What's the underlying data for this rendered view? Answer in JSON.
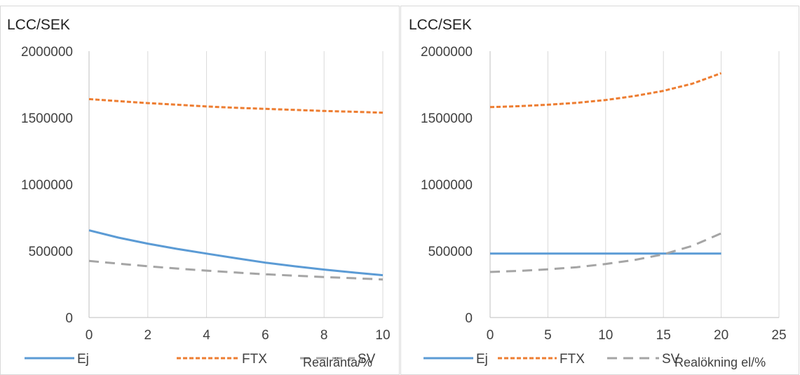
{
  "colors": {
    "Ej": "#5b9bd5",
    "FTX": "#ed7d31",
    "SV": "#a5a5a5"
  },
  "chart_data": [
    {
      "type": "line",
      "title": "",
      "ylabel": "LCC/SEK",
      "xlabel": "Realränta/%",
      "xlim": [
        0,
        10
      ],
      "ylim": [
        0,
        2000000
      ],
      "xticks": [
        "0",
        "2",
        "4",
        "6",
        "8",
        "10"
      ],
      "yticks": [
        "0",
        "500000",
        "1000000",
        "1500000",
        "2000000"
      ],
      "grid": "vertical",
      "legend": "bottom",
      "x": [
        0,
        1,
        2,
        3,
        4,
        5,
        6,
        7,
        8,
        9,
        10
      ],
      "series": [
        {
          "name": "Ej",
          "style": "solid",
          "values": [
            655000,
            600000,
            555000,
            515000,
            480000,
            445000,
            412000,
            385000,
            360000,
            338000,
            318000
          ]
        },
        {
          "name": "FTX",
          "style": "dotted",
          "values": [
            1640000,
            1625000,
            1610000,
            1598000,
            1585000,
            1575000,
            1567000,
            1559000,
            1551000,
            1545000,
            1538000
          ]
        },
        {
          "name": "SV",
          "style": "dashed",
          "values": [
            425000,
            405000,
            385000,
            368000,
            352000,
            338000,
            325000,
            314000,
            304000,
            295000,
            286000
          ]
        }
      ]
    },
    {
      "type": "line",
      "title": "",
      "ylabel": "LCC/SEK",
      "xlabel": "Realökning el/%",
      "xlim": [
        0,
        25
      ],
      "ylim": [
        0,
        2000000
      ],
      "xticks": [
        "0",
        "5",
        "10",
        "15",
        "20",
        "25"
      ],
      "yticks": [
        "0",
        "500000",
        "1000000",
        "1500000",
        "2000000"
      ],
      "grid": "vertical",
      "legend": "bottom",
      "x": [
        0,
        2.5,
        5,
        7.5,
        10,
        12.5,
        15,
        17.5,
        20
      ],
      "series": [
        {
          "name": "Ej",
          "style": "solid",
          "values": [
            480000,
            480000,
            480000,
            480000,
            480000,
            480000,
            480000,
            480000,
            480000
          ]
        },
        {
          "name": "FTX",
          "style": "dotted",
          "values": [
            1580000,
            1587000,
            1598000,
            1612000,
            1633000,
            1663000,
            1702000,
            1756000,
            1835000
          ]
        },
        {
          "name": "SV",
          "style": "dashed",
          "values": [
            342000,
            350000,
            362000,
            378000,
            402000,
            432000,
            475000,
            538000,
            632000
          ]
        }
      ]
    }
  ]
}
